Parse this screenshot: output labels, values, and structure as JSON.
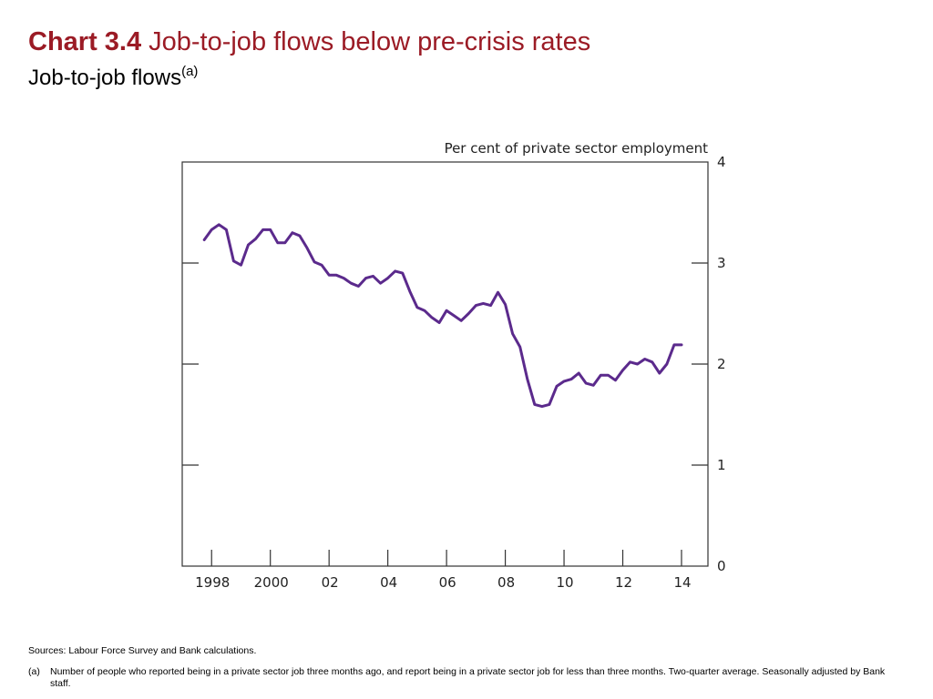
{
  "header": {
    "chart_number": "Chart 3.4",
    "title": "Job-to-job flows below pre-crisis rates",
    "subtitle": "Job-to-job flows",
    "subtitle_marker": "(a)"
  },
  "footer": {
    "sources": "Sources:  Labour Force Survey and Bank calculations.",
    "note_marker": "(a)",
    "note_text": "Number of people who reported being in a private sector job three months ago, and report being in a private sector job for less than three months.  Two-quarter average.  Seasonally adjusted by Bank staff."
  },
  "colors": {
    "title": "#9b1b25",
    "line": "#5b2a8c",
    "axis": "#333333"
  },
  "chart_data": {
    "type": "line",
    "title": "Job-to-job flows",
    "ylabel": "Per cent of private sector employment",
    "ylim": [
      0,
      4
    ],
    "xlim": [
      1997.0,
      2014.9
    ],
    "yticks": [
      0,
      1,
      2,
      3,
      4
    ],
    "xticks": [
      {
        "label": "1998",
        "value": 1998.0
      },
      {
        "label": "2000",
        "value": 2000.0
      },
      {
        "label": "02",
        "value": 2002.0
      },
      {
        "label": "04",
        "value": 2004.0
      },
      {
        "label": "06",
        "value": 2006.0
      },
      {
        "label": "08",
        "value": 2008.0
      },
      {
        "label": "10",
        "value": 2010.0
      },
      {
        "label": "12",
        "value": 2012.0
      },
      {
        "label": "14",
        "value": 2014.0
      }
    ],
    "y_axis_side": "right",
    "grid": false,
    "series": [
      {
        "x": [
          1997.75,
          1998.0,
          1998.25,
          1998.5,
          1998.75,
          1999.0,
          1999.25,
          1999.5,
          1999.75,
          2000.0,
          2000.25,
          2000.5,
          2000.75,
          2001.0,
          2001.25,
          2001.5,
          2001.75,
          2002.0,
          2002.25,
          2002.5,
          2002.75,
          2003.0,
          2003.25,
          2003.5,
          2003.75,
          2004.0,
          2004.25,
          2004.5,
          2004.75,
          2005.0,
          2005.25,
          2005.5,
          2005.75,
          2006.0,
          2006.25,
          2006.5,
          2006.75,
          2007.0,
          2007.25,
          2007.5,
          2007.75,
          2008.0,
          2008.25,
          2008.5,
          2008.75,
          2009.0,
          2009.25,
          2009.5,
          2009.75,
          2010.0,
          2010.25,
          2010.5,
          2010.75,
          2011.0,
          2011.25,
          2011.5,
          2011.75,
          2012.0,
          2012.25,
          2012.5,
          2012.75,
          2013.0,
          2013.25,
          2013.5,
          2013.75,
          2014.0
        ],
        "y": [
          3.23,
          3.33,
          3.38,
          3.33,
          3.02,
          2.98,
          3.18,
          3.24,
          3.33,
          3.33,
          3.2,
          3.2,
          3.3,
          3.27,
          3.15,
          3.01,
          2.98,
          2.88,
          2.88,
          2.85,
          2.8,
          2.77,
          2.85,
          2.87,
          2.8,
          2.85,
          2.92,
          2.9,
          2.72,
          2.56,
          2.53,
          2.46,
          2.41,
          2.53,
          2.48,
          2.43,
          2.5,
          2.58,
          2.6,
          2.58,
          2.71,
          2.59,
          2.3,
          2.17,
          1.85,
          1.6,
          1.58,
          1.6,
          1.78,
          1.83,
          1.85,
          1.91,
          1.81,
          1.79,
          1.89,
          1.89,
          1.84,
          1.94,
          2.02,
          2.0,
          2.05,
          2.02,
          1.91,
          2.0,
          2.19,
          2.19
        ]
      }
    ]
  }
}
